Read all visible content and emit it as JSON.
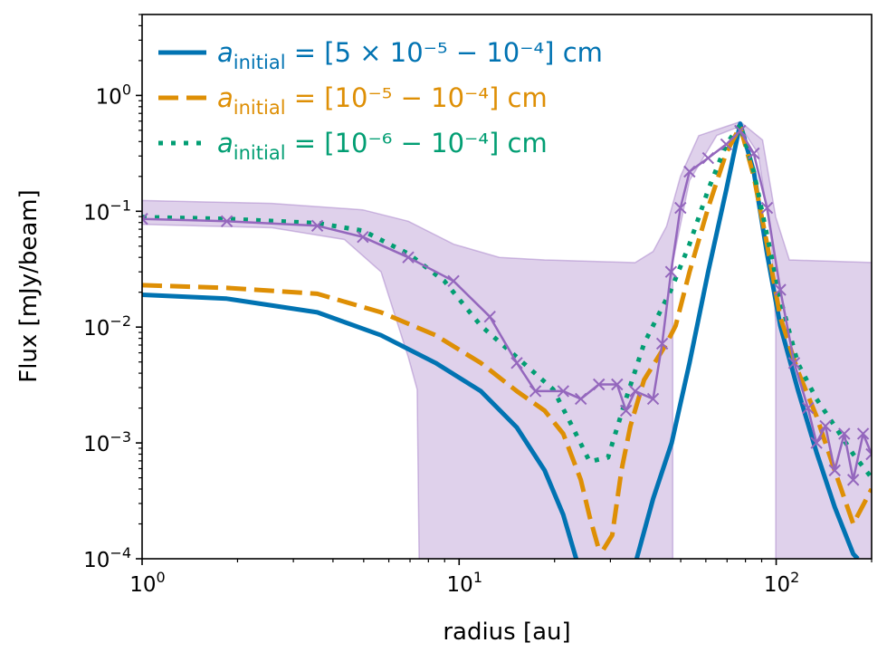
{
  "chart_data": {
    "type": "line",
    "xlabel": "radius [au]",
    "ylabel": "Flux [mJy/beam]",
    "xscale": "log",
    "yscale": "log",
    "xlim": [
      1,
      200
    ],
    "ylim": [
      0.0001,
      5
    ],
    "grid": false,
    "legend_position": "top-left",
    "x_ticks": [
      {
        "value": 1,
        "base": "10",
        "exp": "0"
      },
      {
        "value": 10,
        "base": "10",
        "exp": "1"
      },
      {
        "value": 100,
        "base": "10",
        "exp": "2"
      }
    ],
    "y_ticks": [
      {
        "value": 0.0001,
        "base": "10",
        "exp": "−4"
      },
      {
        "value": 0.001,
        "base": "10",
        "exp": "−3"
      },
      {
        "value": 0.01,
        "base": "10",
        "exp": "−2"
      },
      {
        "value": 0.1,
        "base": "10",
        "exp": "−1"
      },
      {
        "value": 1,
        "base": "10",
        "exp": "0"
      }
    ],
    "series": [
      {
        "name": {
          "symbol": "a",
          "sub": "initial",
          "text": " = [5 × 10⁻⁵ − 10⁻⁴] cm"
        },
        "style": "solid",
        "color": "#0173b2",
        "x": [
          1,
          1.85,
          3.57,
          5.67,
          8.43,
          11.7,
          15.2,
          18.6,
          21.3,
          23.4,
          27,
          33,
          36.3,
          40.9,
          46.8,
          53.3,
          61,
          69.6,
          77,
          85,
          93.6,
          103,
          117,
          134,
          153,
          175,
          181
        ],
        "y": [
          0.019,
          0.0176,
          0.0134,
          0.0085,
          0.0049,
          0.0028,
          0.00136,
          0.00058,
          0.00024,
          0.0001,
          2e-05,
          2e-05,
          0.0001,
          0.00033,
          0.001,
          0.0049,
          0.03,
          0.153,
          0.57,
          0.22,
          0.043,
          0.0103,
          0.0029,
          0.00083,
          0.00028,
          0.00011,
          0.0001
        ]
      },
      {
        "name": {
          "symbol": "a",
          "sub": "initial",
          "text": " = [10⁻⁵ − 10⁻⁴] cm"
        },
        "style": "dashed",
        "color": "#de8f05",
        "x": [
          1,
          1.85,
          3.57,
          5.67,
          8.43,
          11.7,
          15.2,
          18.6,
          21.3,
          24.2,
          25.8,
          27.6,
          28.5,
          30.4,
          32.5,
          34.7,
          38.3,
          45.1,
          48.2,
          53.3,
          61,
          69.6,
          77,
          85,
          93.6,
          103,
          117,
          134,
          153,
          175,
          200
        ],
        "y": [
          0.023,
          0.0218,
          0.0194,
          0.0134,
          0.0085,
          0.0049,
          0.0028,
          0.0019,
          0.0012,
          0.00048,
          0.00023,
          0.00012,
          0.00012,
          0.00016,
          0.00058,
          0.0014,
          0.0035,
          0.0072,
          0.0103,
          0.03,
          0.107,
          0.32,
          0.54,
          0.2,
          0.052,
          0.0122,
          0.0042,
          0.0017,
          0.00058,
          0.0002,
          0.0004
        ]
      },
      {
        "name": {
          "symbol": "a",
          "sub": "initial",
          "text": " = [10⁻⁶ − 10⁻⁴] cm"
        },
        "style": "dotted",
        "color": "#029e73",
        "x": [
          1,
          1.85,
          3.57,
          4.97,
          6.91,
          8.98,
          11.7,
          15.2,
          19.8,
          22.7,
          25.8,
          29.5,
          33.6,
          38.3,
          46.6,
          53.3,
          61,
          69.6,
          77,
          85,
          93.6,
          103,
          117,
          134,
          153,
          175,
          200
        ],
        "y": [
          0.089,
          0.086,
          0.079,
          0.068,
          0.043,
          0.025,
          0.0103,
          0.0055,
          0.0029,
          0.0014,
          0.00069,
          0.00075,
          0.0024,
          0.0072,
          0.021,
          0.052,
          0.153,
          0.378,
          0.56,
          0.22,
          0.062,
          0.0177,
          0.0049,
          0.0024,
          0.0014,
          0.0008,
          0.0005
        ]
      },
      {
        "style": "solid-cross-markers",
        "color": "#9467bd",
        "x": [
          1,
          1.85,
          3.57,
          4.97,
          6.91,
          9.6,
          12.5,
          15.2,
          17.4,
          21.3,
          24.2,
          27.6,
          31.5,
          33.6,
          35.9,
          40.9,
          43.7,
          46.6,
          49.9,
          53.3,
          61,
          69.6,
          77,
          85,
          93.6,
          103,
          114,
          126,
          134,
          143,
          153,
          164,
          175,
          188,
          200
        ],
        "y": [
          0.086,
          0.082,
          0.075,
          0.06,
          0.04,
          0.025,
          0.0123,
          0.0049,
          0.0028,
          0.0028,
          0.0024,
          0.0032,
          0.0032,
          0.0019,
          0.0028,
          0.0024,
          0.0072,
          0.03,
          0.107,
          0.22,
          0.288,
          0.378,
          0.495,
          0.316,
          0.107,
          0.021,
          0.0049,
          0.002,
          0.001,
          0.0014,
          0.00058,
          0.0012,
          0.00048,
          0.0012,
          0.0008
        ]
      }
    ],
    "band": {
      "color": "#9467bd",
      "upper": {
        "x": [
          1,
          2.57,
          4.97,
          6.91,
          9.6,
          13.4,
          18.6,
          35.9,
          40.9,
          45.1,
          49.9,
          57,
          77,
          90.6,
          99.7,
          110,
          203.6
        ],
        "y": [
          0.124,
          0.117,
          0.103,
          0.082,
          0.052,
          0.04,
          0.038,
          0.036,
          0.045,
          0.074,
          0.2,
          0.45,
          0.593,
          0.413,
          0.089,
          0.038,
          0.036
        ]
      },
      "lower": {
        "x": [
          1,
          2.57,
          4.35,
          5.67,
          6.91,
          7.37,
          7.49,
          47.2,
          47.2,
          53.3,
          65,
          77,
          87.7,
          96.5,
          99.7,
          99.7,
          203.6
        ],
        "y": [
          0.077,
          0.072,
          0.057,
          0.03,
          0.0055,
          0.0029,
          1e-05,
          1e-05,
          0.036,
          0.184,
          0.452,
          0.542,
          0.316,
          0.057,
          0.0103,
          1e-05,
          1e-05
        ]
      }
    }
  }
}
